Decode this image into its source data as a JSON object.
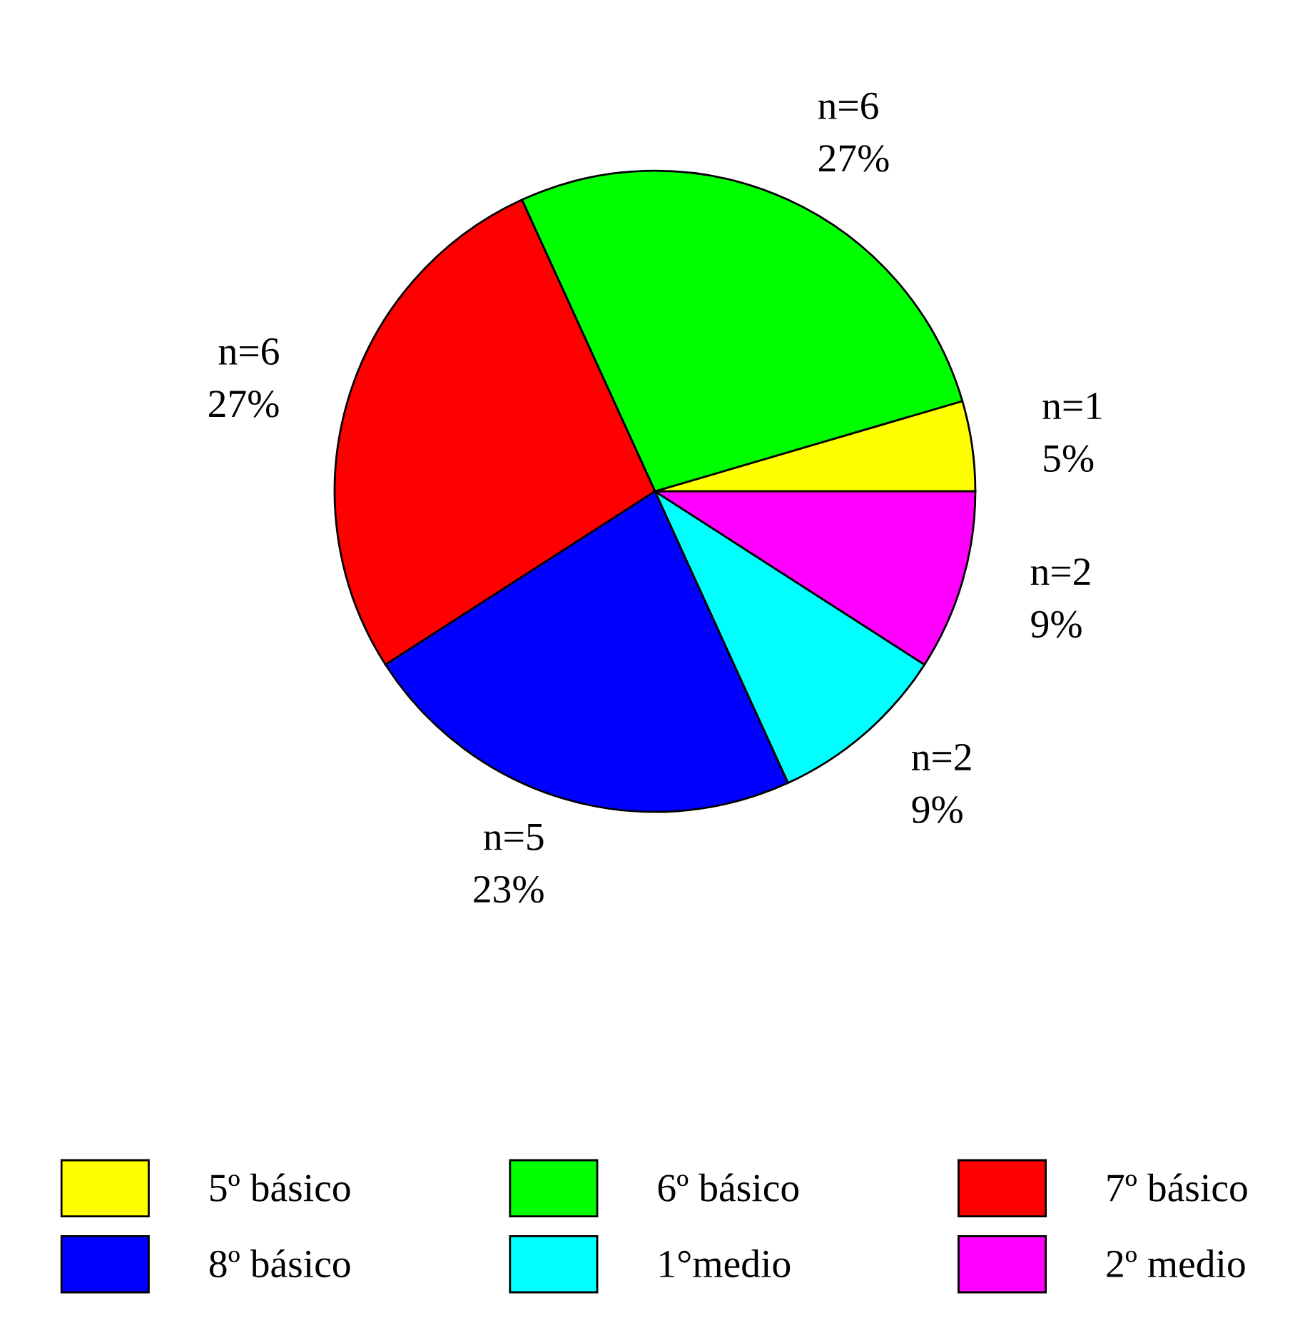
{
  "chart_data": {
    "type": "pie",
    "categories": [
      "5º básico",
      "6º básico",
      "7º básico",
      "8º básico",
      "1°medio",
      "2º medio"
    ],
    "values": [
      1,
      6,
      6,
      5,
      2,
      2
    ],
    "value_labels": [
      "n=1\n5%",
      "n=6\n27%",
      "n=6\n27%",
      "n=5\n23%",
      "n=2\n9%",
      "n=2\n9%"
    ],
    "colors": [
      "#ffff00",
      "#00ff00",
      "#ff0000",
      "#0000ff",
      "#00ffff",
      "#ff00ff"
    ],
    "legend": "bottom"
  }
}
